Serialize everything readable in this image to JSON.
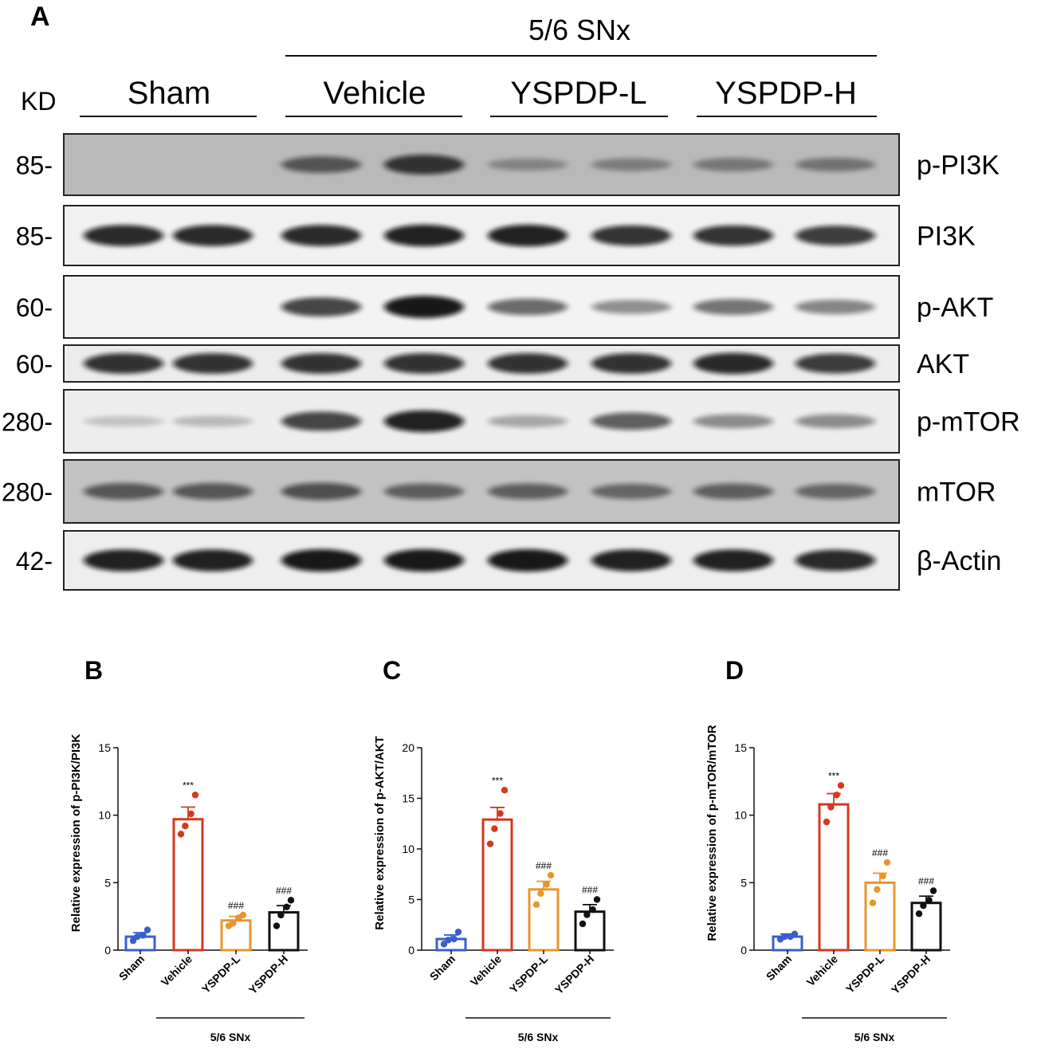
{
  "panel_a": {
    "panel_label": "A",
    "group_top_label": "5/6 SNx",
    "group_labels": [
      "Sham",
      "Vehicle",
      "YSPDP-L",
      "YSPDP-H"
    ],
    "kd_label": "KD",
    "rows": [
      {
        "kd": "85",
        "protein": "p-PI3K",
        "background": "#b9b9b9",
        "lanes": [
          0.0,
          0.0,
          0.55,
          0.8,
          0.2,
          0.25,
          0.3,
          0.32
        ]
      },
      {
        "kd": "85",
        "protein": "PI3K",
        "background": "#f1f1f1",
        "lanes": [
          0.9,
          0.9,
          0.9,
          0.95,
          0.95,
          0.85,
          0.85,
          0.8
        ]
      },
      {
        "kd": "60",
        "protein": "p-AKT",
        "background": "#f3f3f3",
        "lanes": [
          0.0,
          0.0,
          0.75,
          1.0,
          0.55,
          0.35,
          0.5,
          0.4
        ]
      },
      {
        "kd": "60",
        "protein": "AKT",
        "background": "#ececec",
        "lanes": [
          0.85,
          0.85,
          0.85,
          0.85,
          0.85,
          0.85,
          0.9,
          0.8
        ]
      },
      {
        "kd": "280",
        "protein": "p-mTOR",
        "background": "#ededed",
        "lanes": [
          0.05,
          0.1,
          0.75,
          0.95,
          0.2,
          0.6,
          0.35,
          0.35
        ]
      },
      {
        "kd": "280",
        "protein": "mTOR",
        "background": "#c2c2c2",
        "lanes": [
          0.55,
          0.55,
          0.6,
          0.5,
          0.5,
          0.45,
          0.5,
          0.45
        ]
      },
      {
        "kd": "42",
        "protein": "β-Actin",
        "background": "#eeeeee",
        "lanes": [
          0.95,
          0.95,
          1.0,
          1.0,
          1.0,
          0.95,
          0.95,
          0.9
        ]
      }
    ]
  },
  "chart_data": [
    {
      "panel_label": "B",
      "type": "bar",
      "ylabel": "Relative expression of  p-PI3K/PI3K",
      "ylim": [
        0,
        15
      ],
      "yticks": [
        "0",
        "5",
        "10",
        "15"
      ],
      "categories": [
        "Sham",
        "Vehicle",
        "YSPDP-L",
        "YSPDP-H"
      ],
      "values": [
        1.0,
        9.7,
        2.2,
        2.8
      ],
      "sem": [
        0.3,
        0.9,
        0.3,
        0.5
      ],
      "points": [
        [
          0.7,
          1.0,
          1.1,
          1.5
        ],
        [
          8.6,
          9.2,
          10.1,
          11.5
        ],
        [
          1.8,
          2.0,
          2.4,
          2.6
        ],
        [
          1.8,
          2.6,
          3.2,
          3.7
        ]
      ],
      "significance": [
        "",
        "***",
        "###",
        "###"
      ],
      "group_label": "5/6 SNx"
    },
    {
      "panel_label": "C",
      "type": "bar",
      "ylabel": "Relative expression of  p-AKT/AKT",
      "ylim": [
        0,
        20
      ],
      "yticks": [
        "0",
        "5",
        "10",
        "15",
        "20"
      ],
      "categories": [
        "Sham",
        "Vehicle",
        "YSPDP-L",
        "YSPDP-H"
      ],
      "values": [
        1.1,
        12.9,
        6.0,
        3.8
      ],
      "sem": [
        0.4,
        1.2,
        0.8,
        0.7
      ],
      "points": [
        [
          0.6,
          1.0,
          1.1,
          1.8
        ],
        [
          10.5,
          12.0,
          13.5,
          15.8
        ],
        [
          4.5,
          5.6,
          6.5,
          7.4
        ],
        [
          2.6,
          3.5,
          4.0,
          5.0
        ]
      ],
      "significance": [
        "",
        "***",
        "###",
        "###"
      ],
      "group_label": "5/6 SNx"
    },
    {
      "panel_label": "D",
      "type": "bar",
      "ylabel": "Relative expression of  p-mTOR/mTOR",
      "ylim": [
        0,
        15
      ],
      "yticks": [
        "0",
        "5",
        "10",
        "15"
      ],
      "categories": [
        "Sham",
        "Vehicle",
        "YSPDP-L",
        "YSPDP-H"
      ],
      "values": [
        1.0,
        10.8,
        5.0,
        3.5
      ],
      "sem": [
        0.2,
        0.8,
        0.7,
        0.5
      ],
      "points": [
        [
          0.8,
          1.0,
          1.0,
          1.2
        ],
        [
          9.5,
          10.6,
          11.5,
          12.2
        ],
        [
          3.5,
          4.5,
          5.5,
          6.5
        ],
        [
          2.7,
          3.3,
          3.7,
          4.4
        ]
      ],
      "significance": [
        "",
        "***",
        "###",
        "###"
      ],
      "group_label": "5/6 SNx"
    }
  ],
  "colors": {
    "Sham": "#3a5fcd",
    "Vehicle": "#d4381f",
    "YSPDP-L": "#e8962c",
    "YSPDP-H": "#111111",
    "band": "#0a0a0a",
    "text": "#111111"
  }
}
